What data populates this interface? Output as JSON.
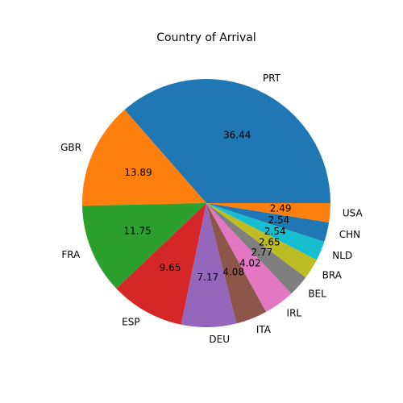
{
  "chart_data": {
    "type": "pie",
    "title": "Country of Arrival",
    "categories": [
      "PRT",
      "GBR",
      "FRA",
      "ESP",
      "DEU",
      "ITA",
      "IRL",
      "BEL",
      "BRA",
      "NLD",
      "CHN",
      "USA"
    ],
    "values": [
      36.44,
      13.89,
      11.75,
      9.65,
      7.17,
      4.08,
      4.02,
      2.77,
      2.65,
      2.54,
      2.54,
      2.49
    ],
    "value_labels": [
      "36.44",
      "13.89",
      "11.75",
      "9.65",
      "7.17",
      "4.08",
      "4.02",
      "2.77",
      "2.65",
      "2.54",
      "2.54",
      "2.49"
    ],
    "colors": [
      "#1f77b4",
      "#ff7f0e",
      "#2ca02c",
      "#d62728",
      "#9467bd",
      "#8c564b",
      "#e377c2",
      "#7f7f7f",
      "#bcbd22",
      "#17becf",
      "#1f77b4",
      "#ff7f0e"
    ],
    "start_angle_deg": 0,
    "direction": "counterclockwise",
    "legend": "none"
  }
}
